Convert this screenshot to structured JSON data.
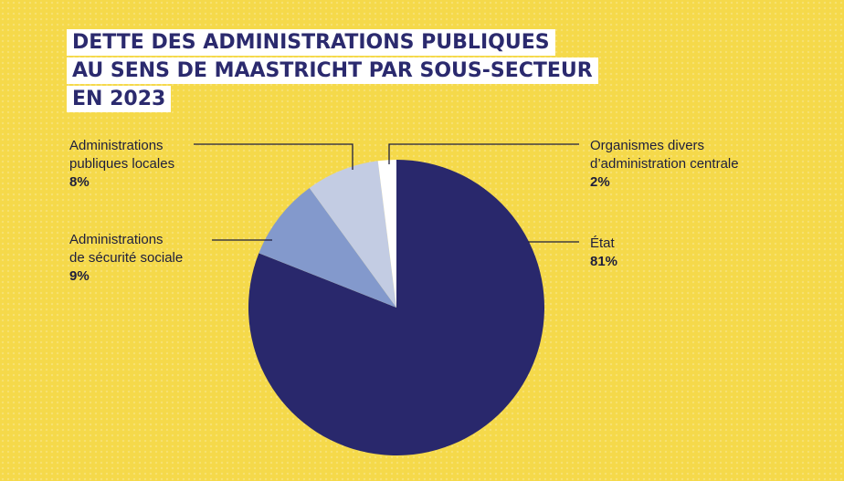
{
  "title": {
    "line1": "DETTE DES ADMINISTRATIONS PUBLIQUES",
    "line2": "AU SENS DE MAASTRICHT PAR SOUS-SECTEUR",
    "line3": "EN 2023"
  },
  "chart_data": {
    "type": "pie",
    "title": "DETTE DES ADMINISTRATIONS PUBLIQUES AU SENS DE MAASTRICHT PAR SOUS-SECTEUR EN 2023",
    "slices": [
      {
        "label": "État",
        "value": 81,
        "display": "81%",
        "color": "#29286c"
      },
      {
        "label": "Administrations de sécurité sociale",
        "value": 9,
        "display": "9%",
        "color": "#8399cc"
      },
      {
        "label": "Administrations publiques locales",
        "value": 8,
        "display": "8%",
        "color": "#c3cce3"
      },
      {
        "label": "Organismes divers d’administration centrale",
        "value": 2,
        "display": "2%",
        "color": "#ffffff"
      }
    ]
  },
  "labels": {
    "etat": {
      "line1": "État",
      "pct": "81%"
    },
    "securite": {
      "line1": "Administrations",
      "line2": "de sécurité sociale",
      "pct": "9%"
    },
    "locales": {
      "line1": "Administrations",
      "line2": "publiques locales",
      "pct": "8%"
    },
    "odac": {
      "line1": "Organismes divers",
      "line2": "d’administration centrale",
      "pct": "2%"
    }
  }
}
